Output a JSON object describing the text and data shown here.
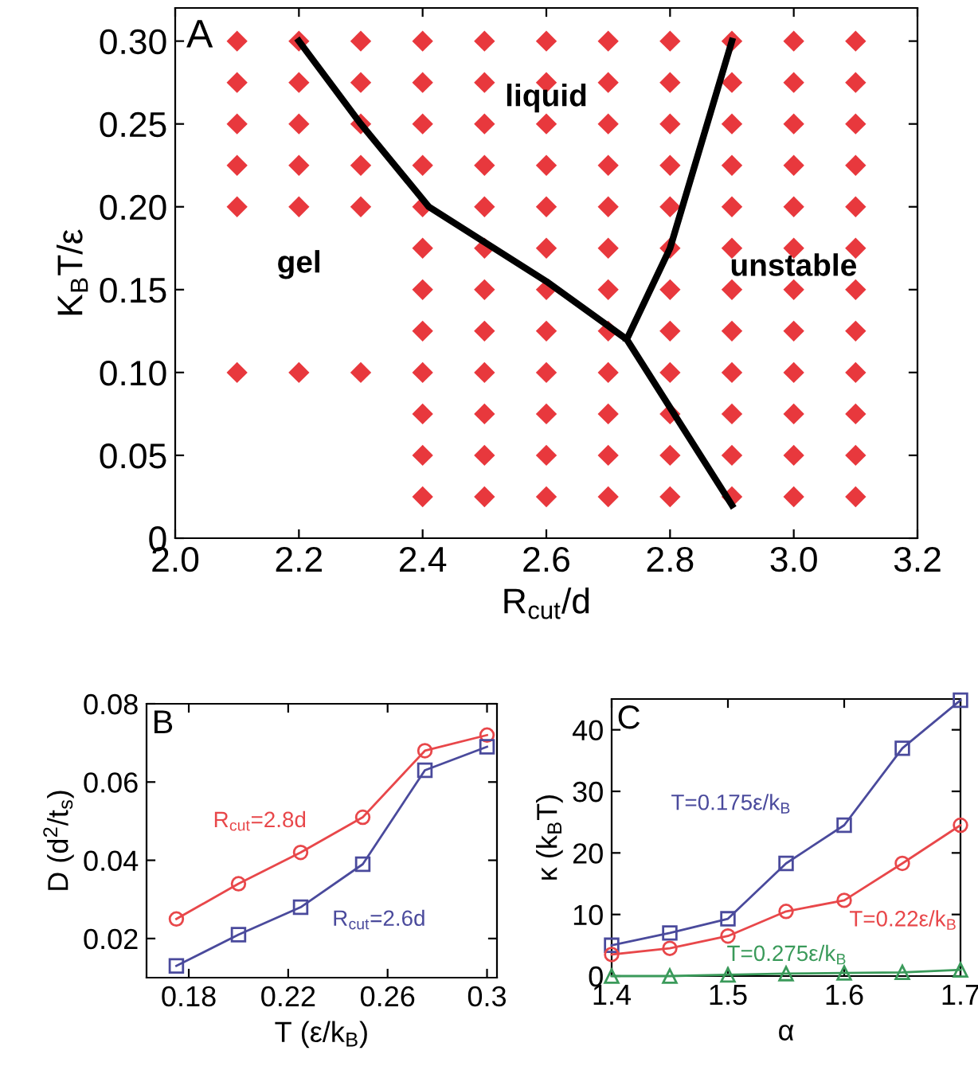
{
  "chart_data": [
    {
      "type": "scatter",
      "xlabel": "R$_{cut}$/d",
      "ylabel": "K$_{B}$T/ε",
      "xlim": [
        2.0,
        3.2
      ],
      "xticks": [
        {
          "value": 2.0,
          "label": "2.0"
        },
        {
          "value": 2.2,
          "label": "2.2"
        },
        {
          "value": 2.4,
          "label": "2.4"
        },
        {
          "value": 2.6,
          "label": "2.6"
        },
        {
          "value": 2.8,
          "label": "2.8"
        },
        {
          "value": 3.0,
          "label": "3.0"
        },
        {
          "value": 3.2,
          "label": "3.2"
        }
      ],
      "ylim": [
        0,
        0.32
      ],
      "yticks": [
        0,
        0.05,
        {
          "value": 0.1,
          "label": "0.10"
        },
        0.15,
        {
          "value": 0.2,
          "label": "0.20"
        },
        0.25,
        {
          "value": 0.3,
          "label": "0.30"
        }
      ],
      "grid": false,
      "legend": false,
      "annotations": [
        "A",
        "gel",
        "liquid",
        "unstable"
      ],
      "series": [
        {
          "type": "scatter",
          "marker": "diamond",
          "color": "#e8383d",
          "x": [
            2.1,
            2.1,
            2.1,
            2.1,
            2.1,
            2.1,
            2.2,
            2.2,
            2.2,
            2.2,
            2.2,
            2.2,
            2.3,
            2.3,
            2.3,
            2.3,
            2.3,
            2.3,
            2.4,
            2.4,
            2.4,
            2.4,
            2.4,
            2.4,
            2.4,
            2.4,
            2.4,
            2.4,
            2.4,
            2.4,
            2.5,
            2.5,
            2.5,
            2.5,
            2.5,
            2.5,
            2.5,
            2.5,
            2.5,
            2.5,
            2.5,
            2.5,
            2.6,
            2.6,
            2.6,
            2.6,
            2.6,
            2.6,
            2.6,
            2.6,
            2.6,
            2.6,
            2.6,
            2.6,
            2.7,
            2.7,
            2.7,
            2.7,
            2.7,
            2.7,
            2.7,
            2.7,
            2.7,
            2.7,
            2.7,
            2.7,
            2.8,
            2.8,
            2.8,
            2.8,
            2.8,
            2.8,
            2.8,
            2.8,
            2.8,
            2.8,
            2.8,
            2.8,
            2.9,
            2.9,
            2.9,
            2.9,
            2.9,
            2.9,
            2.9,
            2.9,
            2.9,
            2.9,
            2.9,
            2.9,
            3.0,
            3.0,
            3.0,
            3.0,
            3.0,
            3.0,
            3.0,
            3.0,
            3.0,
            3.0,
            3.0,
            3.0,
            3.1,
            3.1,
            3.1,
            3.1,
            3.1,
            3.1,
            3.1,
            3.1,
            3.1,
            3.1,
            3.1,
            3.1
          ],
          "values": [
            0.3,
            0.275,
            0.25,
            0.225,
            0.2,
            0.1,
            0.3,
            0.275,
            0.25,
            0.225,
            0.2,
            0.1,
            0.3,
            0.275,
            0.25,
            0.225,
            0.2,
            0.1,
            0.3,
            0.275,
            0.25,
            0.225,
            0.2,
            0.175,
            0.15,
            0.125,
            0.1,
            0.075,
            0.05,
            0.025,
            0.3,
            0.275,
            0.25,
            0.225,
            0.2,
            0.175,
            0.15,
            0.125,
            0.1,
            0.075,
            0.05,
            0.025,
            0.3,
            0.275,
            0.25,
            0.225,
            0.2,
            0.175,
            0.15,
            0.125,
            0.1,
            0.075,
            0.05,
            0.025,
            0.3,
            0.275,
            0.25,
            0.225,
            0.2,
            0.175,
            0.15,
            0.125,
            0.1,
            0.075,
            0.05,
            0.025,
            0.3,
            0.275,
            0.25,
            0.225,
            0.2,
            0.175,
            0.15,
            0.125,
            0.1,
            0.075,
            0.05,
            0.025,
            0.3,
            0.275,
            0.25,
            0.225,
            0.2,
            0.175,
            0.15,
            0.125,
            0.1,
            0.075,
            0.05,
            0.025,
            0.3,
            0.275,
            0.25,
            0.225,
            0.2,
            0.175,
            0.15,
            0.125,
            0.1,
            0.075,
            0.05,
            0.025,
            0.3,
            0.275,
            0.25,
            0.225,
            0.2,
            0.175,
            0.15,
            0.125,
            0.1,
            0.075,
            0.05,
            0.025
          ]
        },
        {
          "type": "line",
          "marker": "none",
          "line_style": "solid",
          "color": "#000000",
          "x": [
            2.2,
            2.3,
            2.41,
            2.6,
            2.73,
            2.9,
            null,
            2.73,
            2.8,
            2.9
          ],
          "values": [
            0.3,
            0.25,
            0.2,
            0.155,
            0.12,
            0.02,
            null,
            0.12,
            0.175,
            0.3
          ]
        }
      ]
    },
    {
      "type": "line",
      "xlabel": "T (ε/k$_{B}$)",
      "ylabel": "D (d$^{2}$/t$_{s}$)",
      "xlim": [
        0.163,
        0.304
      ],
      "xticks": [
        0.18,
        0.22,
        0.26,
        {
          "value": 0.3,
          "label": "0.3"
        }
      ],
      "ylim": [
        0.01,
        0.08
      ],
      "yticks": [
        0.02,
        0.04,
        0.06,
        0.08
      ],
      "grid": false,
      "legend": false,
      "annotations": [
        "B"
      ],
      "series": [
        {
          "name": "R$_{cut}$=2.8d",
          "marker": "circle",
          "color": "#e8474a",
          "x": [
            0.175,
            0.2,
            0.225,
            0.25,
            0.275,
            0.3
          ],
          "values": [
            0.025,
            0.034,
            0.042,
            0.051,
            0.068,
            0.072
          ]
        },
        {
          "name": "R$_{cut}$=2.6d",
          "marker": "square",
          "color": "#4a4a9c",
          "x": [
            0.175,
            0.2,
            0.225,
            0.25,
            0.275,
            0.3
          ],
          "values": [
            0.013,
            0.021,
            0.028,
            0.039,
            0.063,
            0.069
          ]
        }
      ]
    },
    {
      "type": "line",
      "xlabel": "α",
      "ylabel": "κ (k$_{B}$T)",
      "xlim": [
        1.4,
        1.7
      ],
      "xticks": [
        1.4,
        1.5,
        1.6,
        1.7
      ],
      "ylim": [
        0,
        45
      ],
      "yticks": [
        0,
        10,
        20,
        30,
        40
      ],
      "grid": false,
      "legend": false,
      "annotations": [
        "C"
      ],
      "series": [
        {
          "name": "T=0.175ε/k$_{B}$",
          "marker": "square",
          "color": "#4a4a9c",
          "x": [
            1.4,
            1.45,
            1.5,
            1.55,
            1.6,
            1.65,
            1.7
          ],
          "values": [
            5,
            7,
            9.3,
            18.3,
            24.5,
            37,
            44.8
          ]
        },
        {
          "name": "T=0.22ε/k$_{B}$",
          "marker": "circle",
          "color": "#e8474a",
          "x": [
            1.4,
            1.45,
            1.5,
            1.55,
            1.6,
            1.65,
            1.7
          ],
          "values": [
            3.5,
            4.5,
            6.5,
            10.5,
            12.3,
            18.3,
            24.5
          ]
        },
        {
          "name": "T=0.275ε/k$_{B}$",
          "marker": "triangle",
          "color": "#3a9a5a",
          "x": [
            1.4,
            1.45,
            1.5,
            1.55,
            1.6,
            1.65,
            1.7
          ],
          "values": [
            0,
            0,
            0.2,
            0.4,
            0.5,
            0.6,
            1.0
          ]
        }
      ]
    }
  ]
}
